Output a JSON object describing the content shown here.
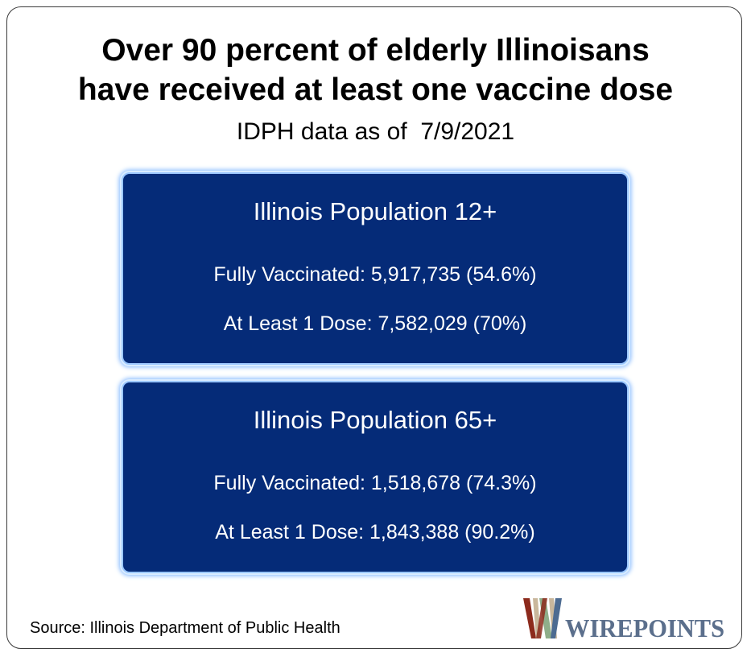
{
  "title": {
    "line1": "Over 90 percent of elderly Illinoisans",
    "line2": "have received at least one vaccine dose"
  },
  "subtitle": "IDPH data as of  7/9/2021",
  "cards": [
    {
      "heading": "Illinois Population 12+",
      "fully_vaccinated": "Fully Vaccinated: 5,917,735 (54.6%)",
      "at_least_one_dose": "At Least 1 Dose: 7,582,029 (70%)"
    },
    {
      "heading": "Illinois Population 65+",
      "fully_vaccinated": "Fully Vaccinated: 1,518,678 (74.3%)",
      "at_least_one_dose": "At Least 1 Dose: 1,843,388 (90.2%)"
    }
  ],
  "source": "Source: Illinois Department of Public Health",
  "logo": {
    "text": "WIREPOINTS",
    "colors": {
      "red": "#8c2a1c",
      "green": "#8fae8a",
      "blue": "#4d6b91",
      "text": "#5b6f8c"
    }
  },
  "colors": {
    "card_background": "#052b78",
    "card_border": "#9cc8ff",
    "card_text": "#ffffff"
  }
}
